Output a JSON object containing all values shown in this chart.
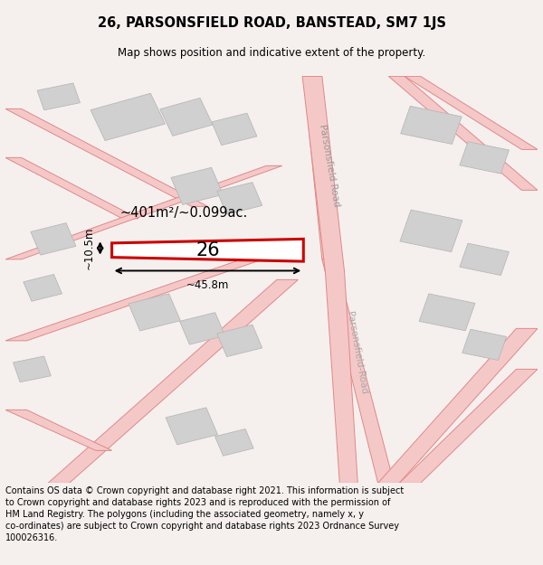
{
  "title_line1": "26, PARSONSFIELD ROAD, BANSTEAD, SM7 1JS",
  "title_line2": "Map shows position and indicative extent of the property.",
  "footer_text": "Contains OS data © Crown copyright and database right 2021. This information is subject\nto Crown copyright and database rights 2023 and is reproduced with the permission of\nHM Land Registry. The polygons (including the associated geometry, namely x, y\nco-ordinates) are subject to Crown copyright and database rights 2023 Ordnance Survey\n100026316.",
  "map_bg": "#ffffff",
  "fig_bg": "#f5f0ee",
  "road_fill": "#f5c8c8",
  "road_edge": "#e08888",
  "building_fill": "#d0d0d0",
  "building_edge": "#b8b8b8",
  "highlight_fill": "#ffffff",
  "highlight_edge": "#cc0000",
  "label_26": "26",
  "area_label": "~401m²/~0.099ac.",
  "width_label": "~45.8m",
  "height_label": "~10.5m",
  "road_label_top": "Parsonsfield Road",
  "road_label_bot": "Parsonsfield-Road"
}
